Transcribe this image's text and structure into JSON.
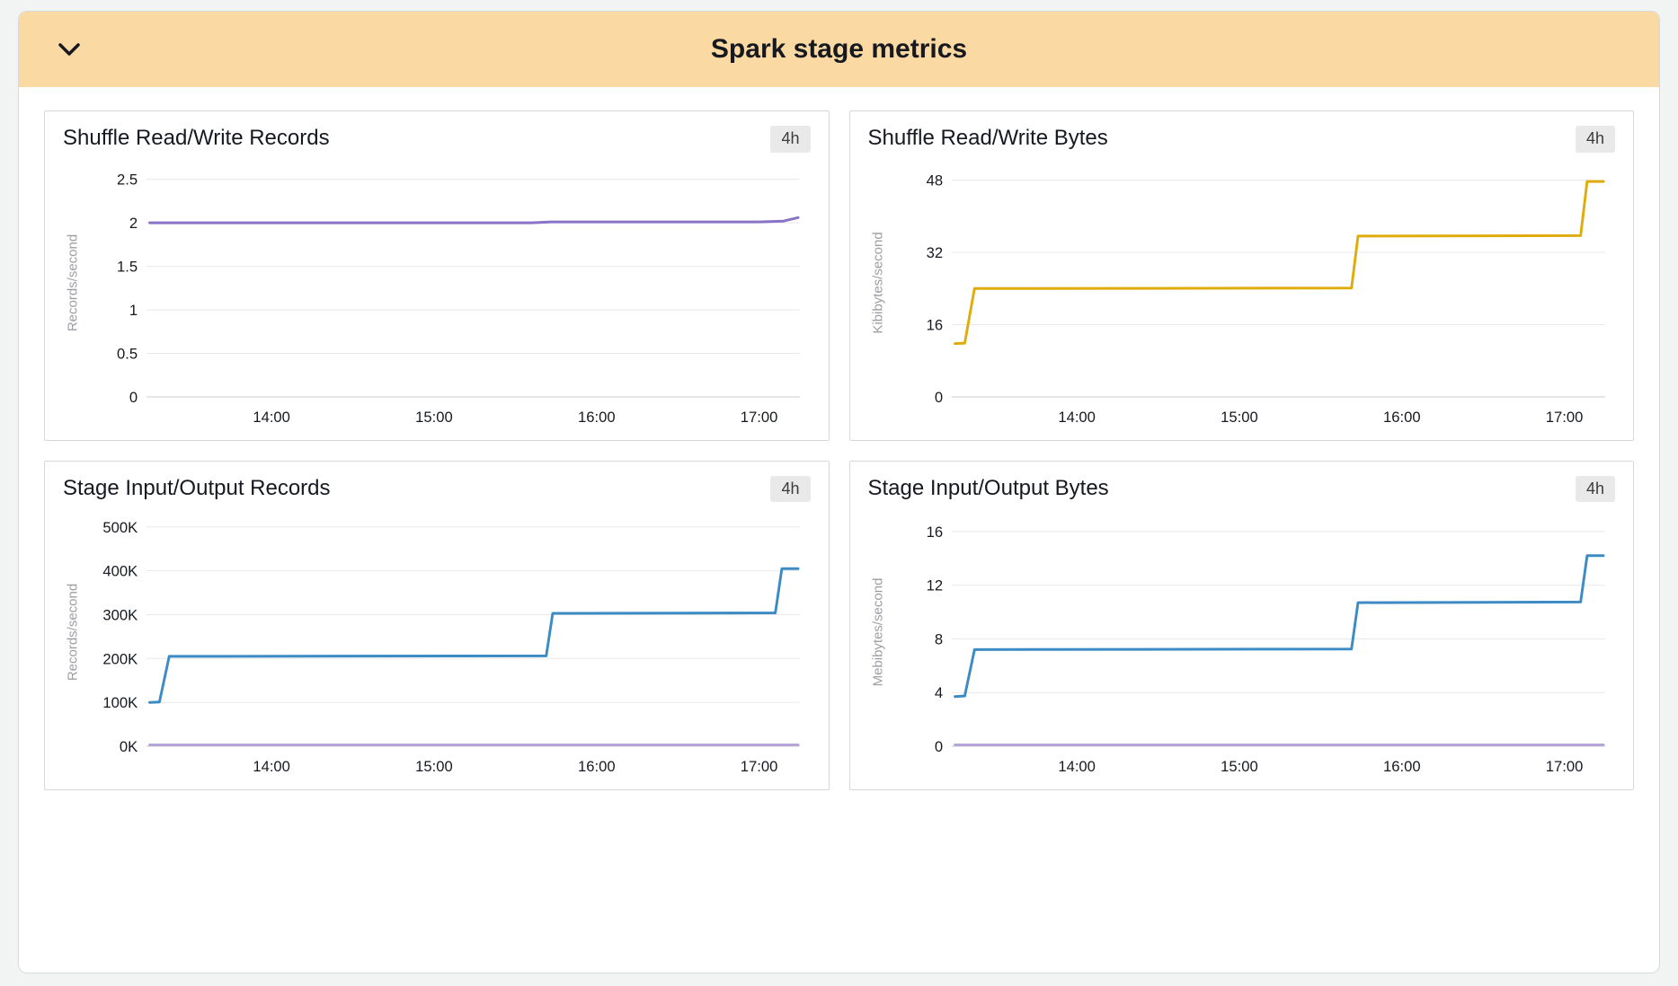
{
  "header": {
    "title": "Spark stage metrics",
    "collapse_icon": "chevron-down-icon"
  },
  "colors": {
    "header_bg": "#fbd9a3",
    "purple_line": "#8873c8",
    "gold_line": "#e0ac0c",
    "blue_line": "#3d8bc4",
    "lavender_line": "#b7a6d8"
  },
  "chart_data": [
    {
      "type": "line",
      "title": "Shuffle Read/Write Records",
      "range_label": "4h",
      "ylabel": "Records/second",
      "xlim": [
        13.23,
        17.25
      ],
      "ylim": [
        0,
        2.62
      ],
      "yticks": [
        0,
        0.5,
        1,
        1.5,
        2,
        2.5
      ],
      "ytick_labels": [
        "0",
        "0.5",
        "1",
        "1.5",
        "2",
        "2.5"
      ],
      "xticks": [
        14,
        15,
        16,
        17
      ],
      "xtick_labels": [
        "14:00",
        "15:00",
        "16:00",
        "17:00"
      ],
      "grid": "horizontal",
      "legend": "none",
      "series": [
        {
          "color": "#8873c8",
          "x": [
            13.25,
            15.6,
            15.72,
            17.0,
            17.15,
            17.24
          ],
          "y": [
            2.0,
            2.0,
            2.01,
            2.01,
            2.02,
            2.06
          ]
        }
      ]
    },
    {
      "type": "line",
      "title": "Shuffle Read/Write Bytes",
      "range_label": "4h",
      "ylabel": "Kibibytes/second",
      "xlim": [
        13.23,
        17.25
      ],
      "ylim": [
        0,
        50.5
      ],
      "yticks": [
        0,
        16,
        32,
        48
      ],
      "ytick_labels": [
        "0",
        "16",
        "32",
        "48"
      ],
      "xticks": [
        14,
        15,
        16,
        17
      ],
      "xtick_labels": [
        "14:00",
        "15:00",
        "16:00",
        "17:00"
      ],
      "grid": "horizontal",
      "legend": "none",
      "series": [
        {
          "color": "#e0ac0c",
          "x": [
            13.25,
            13.31,
            13.37,
            15.69,
            15.73,
            17.1,
            17.14,
            17.24
          ],
          "y": [
            11.8,
            11.9,
            24.0,
            24.1,
            35.6,
            35.7,
            47.7,
            47.7
          ]
        }
      ]
    },
    {
      "type": "line",
      "title": "Stage Input/Output Records",
      "range_label": "4h",
      "ylabel": "Records/second",
      "xlim": [
        13.23,
        17.25
      ],
      "ylim": [
        0,
        520000
      ],
      "yticks": [
        0,
        100000,
        200000,
        300000,
        400000,
        500000
      ],
      "ytick_labels": [
        "0K",
        "100K",
        "200K",
        "300K",
        "400K",
        "500K"
      ],
      "xticks": [
        14,
        15,
        16,
        17
      ],
      "xtick_labels": [
        "14:00",
        "15:00",
        "16:00",
        "17:00"
      ],
      "grid": "horizontal",
      "legend": "none",
      "series": [
        {
          "color": "#3d8bc4",
          "x": [
            13.25,
            13.31,
            13.37,
            15.69,
            15.73,
            17.1,
            17.14,
            17.24
          ],
          "y": [
            100000,
            101000,
            205000,
            206000,
            303000,
            304000,
            405000,
            405000
          ]
        },
        {
          "color": "#b7a6d8",
          "x": [
            13.25,
            17.24
          ],
          "y": [
            3000,
            3000
          ]
        }
      ]
    },
    {
      "type": "line",
      "title": "Stage Input/Output Bytes",
      "range_label": "4h",
      "ylabel": "Mebibytes/second",
      "xlim": [
        13.23,
        17.25
      ],
      "ylim": [
        0,
        17
      ],
      "yticks": [
        0,
        4,
        8,
        12,
        16
      ],
      "ytick_labels": [
        "0",
        "4",
        "8",
        "12",
        "16"
      ],
      "xticks": [
        14,
        15,
        16,
        17
      ],
      "xtick_labels": [
        "14:00",
        "15:00",
        "16:00",
        "17:00"
      ],
      "grid": "horizontal",
      "legend": "none",
      "series": [
        {
          "color": "#3d8bc4",
          "x": [
            13.25,
            13.31,
            13.37,
            15.69,
            15.73,
            17.1,
            17.14,
            17.24
          ],
          "y": [
            3.7,
            3.75,
            7.2,
            7.25,
            10.7,
            10.75,
            14.2,
            14.2
          ]
        },
        {
          "color": "#b7a6d8",
          "x": [
            13.25,
            17.24
          ],
          "y": [
            0.1,
            0.1
          ]
        }
      ]
    }
  ]
}
